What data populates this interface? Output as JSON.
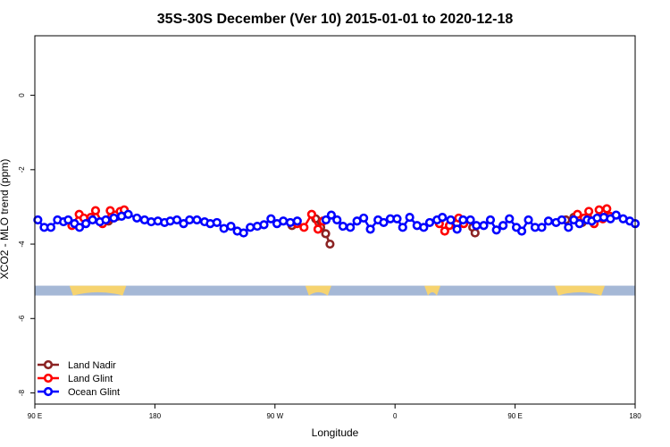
{
  "chart_data": {
    "type": "line",
    "title": "35S-30S December (Ver 10)   2015-01-01 to 2020-12-18",
    "xlabel": "Longitude",
    "ylabel": "XCO2 - MLO trend (ppm)",
    "xlim": [
      90,
      270
    ],
    "ylim": [
      -8.3,
      1.6
    ],
    "xticks": [
      {
        "value": 90,
        "label": "90 E"
      },
      {
        "value": 126,
        "label": "180"
      },
      {
        "value": 162,
        "label": "90 W"
      },
      {
        "value": 198,
        "label": "0"
      },
      {
        "value": 234,
        "label": "90 E"
      },
      {
        "value": 270,
        "label": "180"
      }
    ],
    "yticks": [
      {
        "value": 0,
        "label": "0"
      },
      {
        "value": -2,
        "label": "-2"
      },
      {
        "value": -4,
        "label": "-4"
      },
      {
        "value": -6,
        "label": "-6"
      },
      {
        "value": -8,
        "label": "-8"
      }
    ],
    "legend_position": "bottom-left",
    "land_ocean_band": {
      "y_center": -5.25,
      "ocean_color": "#a5b8d6",
      "land_color": "#f6d36f",
      "land_spans": [
        [
          100.4,
          117.4
        ],
        [
          171.1,
          178.9
        ],
        [
          206.8,
          211.6
        ],
        [
          245.9,
          260.9
        ]
      ]
    },
    "series": [
      {
        "name": "Land Nadir",
        "color": "#8b2323",
        "points": [
          [
            112.1,
            -3.38
          ],
          [
            114.8,
            -3.25
          ],
          [
            167.1,
            -3.5
          ],
          [
            174.2,
            -3.32
          ],
          [
            175.7,
            -3.55
          ],
          [
            177.2,
            -3.72
          ],
          [
            178.5,
            -4.0
          ],
          [
            221.3,
            -3.55
          ],
          [
            222.0,
            -3.7
          ],
          [
            249.2,
            -3.35
          ],
          [
            251.6,
            -3.28
          ],
          [
            254.1,
            -3.42
          ]
        ]
      },
      {
        "name": "Land Glint",
        "color": "#ff0000",
        "points": [
          [
            101.1,
            -3.5
          ],
          [
            103.3,
            -3.2
          ],
          [
            104.7,
            -3.3
          ],
          [
            106.8,
            -3.28
          ],
          [
            108.2,
            -3.1
          ],
          [
            110.3,
            -3.45
          ],
          [
            111.6,
            -3.35
          ],
          [
            112.6,
            -3.1
          ],
          [
            114.1,
            -3.22
          ],
          [
            115.6,
            -3.12
          ],
          [
            116.8,
            -3.08
          ],
          [
            168.6,
            -3.45
          ],
          [
            170.7,
            -3.55
          ],
          [
            173.0,
            -3.2
          ],
          [
            174.9,
            -3.6
          ],
          [
            176.4,
            -3.38
          ],
          [
            211.3,
            -3.45
          ],
          [
            212.9,
            -3.65
          ],
          [
            214.3,
            -3.5
          ],
          [
            217.1,
            -3.3
          ],
          [
            218.6,
            -3.45
          ],
          [
            252.7,
            -3.2
          ],
          [
            254.7,
            -3.3
          ],
          [
            256.1,
            -3.12
          ],
          [
            257.7,
            -3.45
          ],
          [
            259.2,
            -3.08
          ],
          [
            260.3,
            -3.32
          ],
          [
            261.5,
            -3.05
          ],
          [
            262.4,
            -3.25
          ]
        ]
      },
      {
        "name": "Ocean Glint",
        "color": "#0000ff",
        "points": [
          [
            90.9,
            -3.35
          ],
          [
            92.8,
            -3.55
          ],
          [
            94.8,
            -3.55
          ],
          [
            96.8,
            -3.35
          ],
          [
            98.6,
            -3.4
          ],
          [
            100.0,
            -3.35
          ],
          [
            101.9,
            -3.45
          ],
          [
            103.4,
            -3.55
          ],
          [
            105.3,
            -3.45
          ],
          [
            107.3,
            -3.35
          ],
          [
            109.5,
            -3.4
          ],
          [
            111.3,
            -3.35
          ],
          [
            113.7,
            -3.3
          ],
          [
            116.0,
            -3.25
          ],
          [
            118.0,
            -3.2
          ],
          [
            120.6,
            -3.3
          ],
          [
            122.9,
            -3.35
          ],
          [
            124.9,
            -3.4
          ],
          [
            126.9,
            -3.38
          ],
          [
            128.9,
            -3.42
          ],
          [
            130.6,
            -3.38
          ],
          [
            132.6,
            -3.35
          ],
          [
            134.6,
            -3.45
          ],
          [
            136.4,
            -3.35
          ],
          [
            138.6,
            -3.35
          ],
          [
            140.9,
            -3.4
          ],
          [
            142.6,
            -3.45
          ],
          [
            144.6,
            -3.42
          ],
          [
            146.7,
            -3.58
          ],
          [
            148.8,
            -3.52
          ],
          [
            150.7,
            -3.65
          ],
          [
            152.6,
            -3.7
          ],
          [
            154.6,
            -3.55
          ],
          [
            156.7,
            -3.52
          ],
          [
            158.7,
            -3.48
          ],
          [
            160.8,
            -3.32
          ],
          [
            162.6,
            -3.45
          ],
          [
            164.5,
            -3.38
          ],
          [
            166.6,
            -3.42
          ],
          [
            168.7,
            -3.38
          ],
          [
            177.3,
            -3.35
          ],
          [
            178.9,
            -3.22
          ],
          [
            180.6,
            -3.35
          ],
          [
            182.4,
            -3.52
          ],
          [
            184.6,
            -3.55
          ],
          [
            186.6,
            -3.38
          ],
          [
            188.6,
            -3.3
          ],
          [
            190.6,
            -3.6
          ],
          [
            192.9,
            -3.35
          ],
          [
            194.6,
            -3.42
          ],
          [
            196.6,
            -3.32
          ],
          [
            198.6,
            -3.32
          ],
          [
            200.3,
            -3.55
          ],
          [
            202.4,
            -3.28
          ],
          [
            204.6,
            -3.5
          ],
          [
            206.6,
            -3.55
          ],
          [
            208.4,
            -3.42
          ],
          [
            210.6,
            -3.35
          ],
          [
            212.2,
            -3.28
          ],
          [
            214.7,
            -3.35
          ],
          [
            216.6,
            -3.6
          ],
          [
            218.4,
            -3.35
          ],
          [
            220.6,
            -3.35
          ],
          [
            222.4,
            -3.5
          ],
          [
            224.6,
            -3.5
          ],
          [
            226.6,
            -3.35
          ],
          [
            228.4,
            -3.62
          ],
          [
            230.4,
            -3.5
          ],
          [
            232.3,
            -3.32
          ],
          [
            234.4,
            -3.55
          ],
          [
            236.0,
            -3.65
          ],
          [
            238.0,
            -3.35
          ],
          [
            240.0,
            -3.55
          ],
          [
            242.0,
            -3.55
          ],
          [
            244.0,
            -3.38
          ],
          [
            246.3,
            -3.42
          ],
          [
            248.0,
            -3.35
          ],
          [
            250.0,
            -3.55
          ],
          [
            251.6,
            -3.35
          ],
          [
            253.3,
            -3.45
          ],
          [
            255.6,
            -3.35
          ],
          [
            257.0,
            -3.38
          ],
          [
            258.6,
            -3.3
          ],
          [
            260.6,
            -3.28
          ],
          [
            262.6,
            -3.32
          ],
          [
            264.3,
            -3.22
          ],
          [
            266.4,
            -3.32
          ],
          [
            268.4,
            -3.38
          ],
          [
            270.0,
            -3.45
          ]
        ]
      }
    ]
  }
}
